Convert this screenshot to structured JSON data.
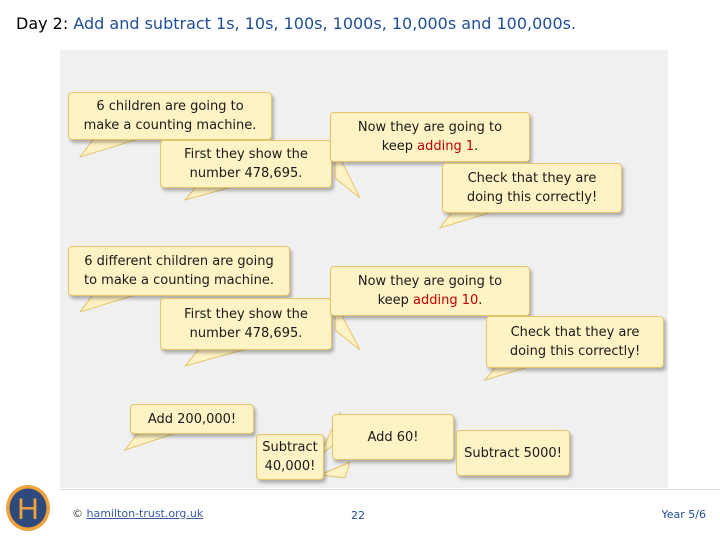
{
  "title": {
    "prefix": "Day 2: ",
    "rest": "Add and subtract 1s, 10s, 100s, 1000s, 10,000s and 100,000s."
  },
  "bubbles": {
    "b1": "6 children are going to\nmake a counting machine.",
    "b2": "First they show the\nnumber 478,695.",
    "b3_pre": "Now they are going to\nkeep ",
    "b3_hl": "adding 1",
    "b3_post": ".",
    "b4": "Check that they are\ndoing this correctly!",
    "b5": "6 different children are going\nto make a counting machine.",
    "b6": "First they show the\nnumber 478,695.",
    "b7_pre": "Now they are going to\nkeep ",
    "b7_hl": "adding 10",
    "b7_post": ".",
    "b8": "Check that they are\ndoing this correctly!",
    "b9": "Add 200,000!",
    "b10": "Subtract\n40,000!",
    "b11": "Add 60!",
    "b12": "Subtract 5000!"
  },
  "footer": {
    "logo_letter": "H",
    "copyright_symbol": "© ",
    "link": "hamilton-trust.org.uk",
    "page": "22",
    "year": "Year 5/6"
  },
  "colors": {
    "bubble_fill": "#fff2c4",
    "bubble_border": "#e5c46a",
    "highlight": "#c00000",
    "title_accent": "#1f4e9a",
    "logo_blue": "#2e4a7d",
    "logo_orange": "#f0a23b"
  }
}
